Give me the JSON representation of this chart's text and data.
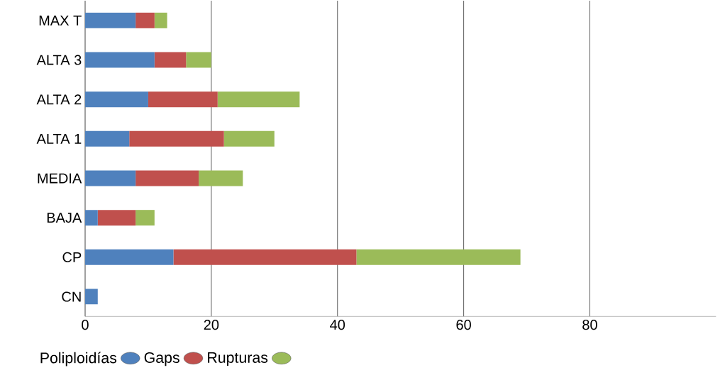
{
  "chart_data": {
    "type": "bar",
    "orientation": "horizontal",
    "stacked": true,
    "categories": [
      "MAX T",
      "ALTA 3",
      "ALTA 2",
      "ALTA 1",
      "MEDIA",
      "BAJA",
      "CP",
      "CN"
    ],
    "series": [
      {
        "name": "Poliploidías",
        "color": "#4f81bd",
        "values": [
          8,
          11,
          10,
          7,
          8,
          2,
          14,
          2
        ]
      },
      {
        "name": "Gaps",
        "color": "#c0504d",
        "values": [
          3,
          5,
          11,
          15,
          10,
          6,
          29,
          null
        ]
      },
      {
        "name": "Rupturas",
        "color": "#9bbb59",
        "values": [
          2,
          4,
          13,
          8,
          7,
          3,
          26,
          null
        ]
      }
    ],
    "xlim": [
      0,
      100
    ],
    "xticks": [
      0,
      20,
      40,
      60,
      80
    ],
    "grid": "x",
    "legend": "bottom left"
  }
}
